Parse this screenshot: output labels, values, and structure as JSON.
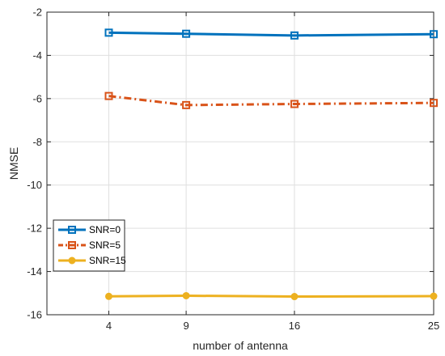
{
  "chart_data": {
    "type": "line",
    "title": "",
    "xlabel": "number of antenna",
    "ylabel": "NMSE",
    "x": [
      4,
      9,
      16,
      25
    ],
    "xticks": [
      4,
      9,
      16,
      25
    ],
    "xlim": [
      0,
      25
    ],
    "yticks": [
      -16,
      -14,
      -12,
      -10,
      -8,
      -6,
      -4,
      -2
    ],
    "ylim": [
      -16,
      -2
    ],
    "grid": true,
    "legend_position": "lower-left",
    "series": [
      {
        "name": "SNR=0",
        "values": [
          -2.95,
          -3.0,
          -3.08,
          -3.02
        ],
        "color": "#0072BD",
        "line_style": "solid",
        "marker": "square"
      },
      {
        "name": "SNR=5",
        "values": [
          -5.88,
          -6.3,
          -6.25,
          -6.2
        ],
        "color": "#D95319",
        "line_style": "dash-dot",
        "marker": "square"
      },
      {
        "name": "SNR=15",
        "values": [
          -15.15,
          -15.12,
          -15.16,
          -15.14
        ],
        "color": "#EDB120",
        "line_style": "solid",
        "marker": "circle"
      }
    ]
  }
}
